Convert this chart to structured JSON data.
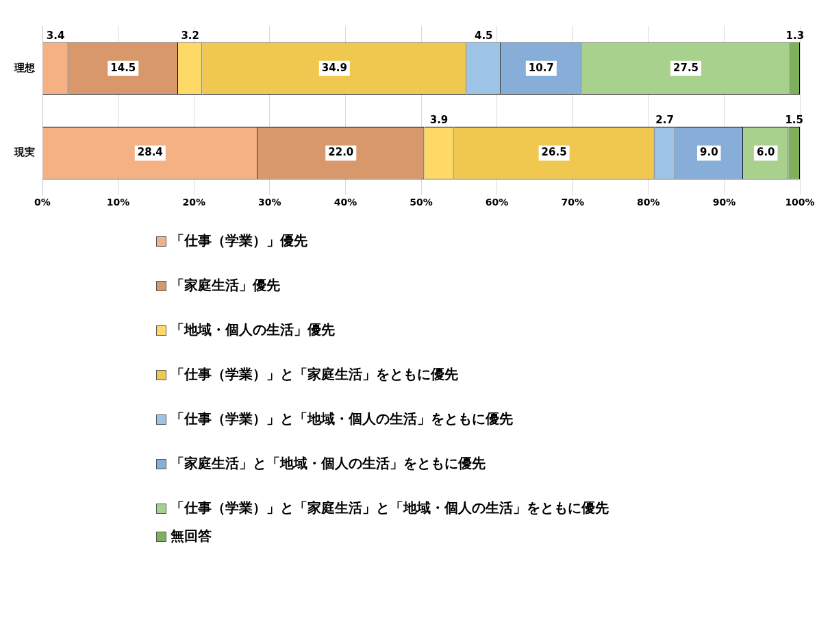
{
  "chart_data": {
    "type": "bar",
    "orientation": "horizontal",
    "stacked": true,
    "legend": "bottom",
    "grid": "x",
    "categories": [
      "理想",
      "現実"
    ],
    "xlim": [
      0,
      100
    ],
    "xticks": [
      {
        "value": 0,
        "label": "0%"
      },
      {
        "value": 10,
        "label": "10%"
      },
      {
        "value": 20,
        "label": "20%"
      },
      {
        "value": 30,
        "label": "30%"
      },
      {
        "value": 40,
        "label": "40%"
      },
      {
        "value": 50,
        "label": "50%"
      },
      {
        "value": 60,
        "label": "60%"
      },
      {
        "value": 70,
        "label": "70%"
      },
      {
        "value": 80,
        "label": "80%"
      },
      {
        "value": 90,
        "label": "90%"
      },
      {
        "value": 100,
        "label": "100%"
      }
    ],
    "series": [
      {
        "name": "「仕事（学業）」優先",
        "color": "#f4b183",
        "values": [
          3.4,
          28.4
        ],
        "value_labels": [
          "3.4",
          "28.4"
        ]
      },
      {
        "name": "「家庭生活」優先",
        "color": "#d9986c",
        "values": [
          14.5,
          22.0
        ],
        "value_labels": [
          "14.5",
          "22.0"
        ]
      },
      {
        "name": "「地域・個人の生活」優先",
        "color": "#ffd966",
        "values": [
          3.2,
          3.9
        ],
        "value_labels": [
          "3.2",
          "3.9"
        ]
      },
      {
        "name": "「仕事（学業）」と「家庭生活」をともに優先",
        "color": "#f0c850",
        "values": [
          34.9,
          26.5
        ],
        "value_labels": [
          "34.9",
          "26.5"
        ]
      },
      {
        "name": "「仕事（学業）」と「地域・個人の生活」をともに優先",
        "color": "#9dc3e6",
        "values": [
          4.5,
          2.7
        ],
        "value_labels": [
          "4.5",
          "2.7"
        ]
      },
      {
        "name": "「家庭生活」と「地域・個人の生活」をともに優先",
        "color": "#86aed8",
        "values": [
          10.7,
          9.0
        ],
        "value_labels": [
          "10.7",
          "9.0"
        ]
      },
      {
        "name": "「仕事（学業）」と「家庭生活」と「地域・個人の生活」をともに優先",
        "color": "#a9d18e",
        "values": [
          27.5,
          6.0
        ],
        "value_labels": [
          "27.5",
          "6.0"
        ]
      },
      {
        "name": "無回答",
        "color": "#7fb05a",
        "values": [
          1.3,
          1.5
        ],
        "value_labels": [
          "1.3",
          "1.5"
        ]
      }
    ]
  }
}
